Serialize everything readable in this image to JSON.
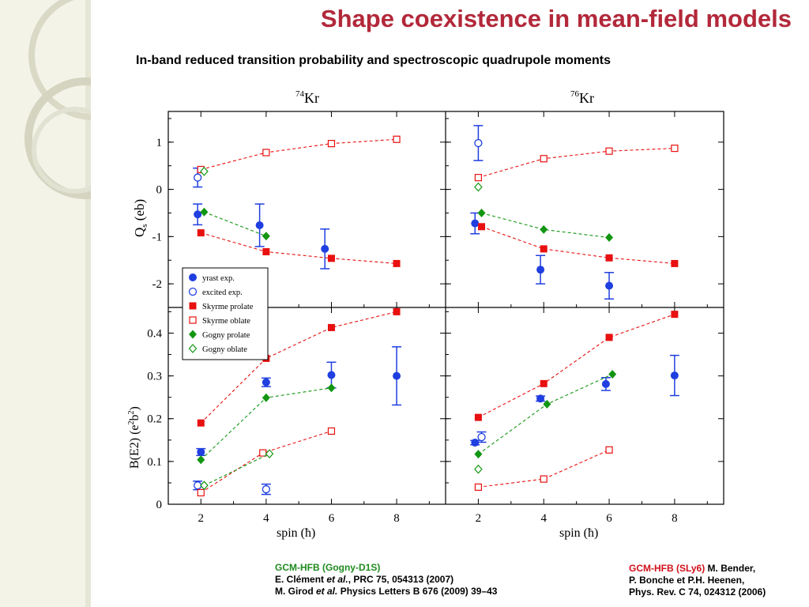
{
  "slide": {
    "title": "Shape coexistence in mean-field models",
    "subtitle": "In-band reduced transition probability and spectroscopic quadrupole moments"
  },
  "references": {
    "left": {
      "method": "GCM-HFB (Gogny-D1S)",
      "line2_a": "E. Clément ",
      "line2_etal": "et al.",
      "line2_b": ", PRC 75, 054313 (2007)",
      "line3_a": "M. Girod ",
      "line3_etal": "et al.",
      "line3_b": " Physics Letters B 676 (2009) 39–43"
    },
    "right": {
      "method": "GCM-HFB (SLy6)",
      "authors1": "  M. Bender,",
      "line2": "P. Bonche et P.H. Heenen,",
      "line3": "Phys. Rev. C 74, 024312 (2006)"
    }
  },
  "colors": {
    "title": "#b2283a",
    "blue": "#1f3fe0",
    "red": "#e81010",
    "green": "#129612"
  },
  "chart_data": {
    "type": "scatter",
    "panels_x": {
      "xlabel": "spin",
      "xunit": "(ħ)",
      "xticks": [
        2,
        4,
        6,
        8
      ],
      "xlim": [
        1.0,
        9.5
      ]
    },
    "top_yaxis": {
      "label_main": "Q",
      "label_sub": "s",
      "label_unit": "(eb)",
      "ylim": [
        -2.5,
        1.65
      ],
      "ticks": [
        1,
        0,
        -1,
        -2
      ],
      "tick_labels": [
        "1",
        "0",
        "-1",
        "-2"
      ]
    },
    "bottom_yaxis": {
      "label_main": "B(E2)",
      "label_unit_a": "(e",
      "label_sup1": "2",
      "label_unit_b": "b",
      "label_sup2": "2",
      "label_unit_c": ")",
      "ylim": [
        0,
        0.46
      ],
      "ticks": [
        0,
        0.1,
        0.2,
        0.3,
        0.4
      ],
      "tick_labels": [
        "0",
        "0.1",
        "0.2",
        "0.3",
        "0.4"
      ]
    },
    "legend": {
      "placement": "top-left of lower-left panel",
      "entries": [
        {
          "label": "yrast exp.",
          "marker": "filled-circle",
          "color": "#1f3fe0"
        },
        {
          "label": "excited exp.",
          "marker": "open-circle",
          "color": "#1f3fe0"
        },
        {
          "label": "Skyrme prolate",
          "marker": "filled-square",
          "color": "#e81010"
        },
        {
          "label": "Skyrme oblate",
          "marker": "open-square",
          "color": "#e81010"
        },
        {
          "label": "Gogny prolate",
          "marker": "filled-diamond",
          "color": "#129612"
        },
        {
          "label": "Gogny oblate",
          "marker": "open-diamond",
          "color": "#129612"
        }
      ]
    },
    "panels": [
      {
        "nucleus_mass": "74",
        "nucleus_sym": "Kr",
        "quantity": "Qs",
        "series": [
          {
            "name": "yrast exp.",
            "marker": "filled-circle",
            "color": "#1f3fe0",
            "line": false,
            "points": [
              {
                "x": 1.9,
                "y": -0.53,
                "err": 0.22
              },
              {
                "x": 3.8,
                "y": -0.76,
                "err": 0.45
              },
              {
                "x": 5.8,
                "y": -1.26,
                "err": 0.42
              }
            ]
          },
          {
            "name": "excited exp.",
            "marker": "open-circle",
            "color": "#1f3fe0",
            "line": false,
            "points": [
              {
                "x": 1.9,
                "y": 0.25,
                "err": 0.2
              }
            ]
          },
          {
            "name": "Skyrme prolate",
            "marker": "filled-square",
            "color": "#e81010",
            "line": true,
            "points": [
              {
                "x": 2,
                "y": -0.92
              },
              {
                "x": 4,
                "y": -1.32
              },
              {
                "x": 6,
                "y": -1.46
              },
              {
                "x": 8,
                "y": -1.57
              }
            ]
          },
          {
            "name": "Skyrme oblate",
            "marker": "open-square",
            "color": "#e81010",
            "line": true,
            "points": [
              {
                "x": 2,
                "y": 0.42
              },
              {
                "x": 4,
                "y": 0.78
              },
              {
                "x": 6,
                "y": 0.97
              },
              {
                "x": 8,
                "y": 1.06
              }
            ]
          },
          {
            "name": "Gogny prolate",
            "marker": "filled-diamond",
            "color": "#129612",
            "line": true,
            "points": [
              {
                "x": 2.1,
                "y": -0.48
              },
              {
                "x": 4,
                "y": -0.99
              }
            ]
          },
          {
            "name": "Gogny oblate",
            "marker": "open-diamond",
            "color": "#129612",
            "line": false,
            "points": [
              {
                "x": 2.1,
                "y": 0.38
              }
            ]
          }
        ]
      },
      {
        "nucleus_mass": "76",
        "nucleus_sym": "Kr",
        "quantity": "Qs",
        "series": [
          {
            "name": "yrast exp.",
            "marker": "filled-circle",
            "color": "#1f3fe0",
            "line": false,
            "points": [
              {
                "x": 1.9,
                "y": -0.72,
                "err": 0.22
              },
              {
                "x": 3.9,
                "y": -1.7,
                "err": 0.3
              },
              {
                "x": 6.0,
                "y": -2.04,
                "err": 0.28
              }
            ]
          },
          {
            "name": "excited exp.",
            "marker": "open-circle",
            "color": "#1f3fe0",
            "line": false,
            "points": [
              {
                "x": 2.0,
                "y": 0.98,
                "err": 0.37
              }
            ]
          },
          {
            "name": "Skyrme prolate",
            "marker": "filled-square",
            "color": "#e81010",
            "line": true,
            "points": [
              {
                "x": 2.1,
                "y": -0.79
              },
              {
                "x": 4,
                "y": -1.26
              },
              {
                "x": 6,
                "y": -1.45
              },
              {
                "x": 8,
                "y": -1.57
              }
            ]
          },
          {
            "name": "Skyrme oblate",
            "marker": "open-square",
            "color": "#e81010",
            "line": true,
            "points": [
              {
                "x": 2,
                "y": 0.25
              },
              {
                "x": 4,
                "y": 0.65
              },
              {
                "x": 6,
                "y": 0.81
              },
              {
                "x": 8,
                "y": 0.87
              }
            ]
          },
          {
            "name": "Gogny prolate",
            "marker": "filled-diamond",
            "color": "#129612",
            "line": true,
            "points": [
              {
                "x": 2.1,
                "y": -0.5
              },
              {
                "x": 4,
                "y": -0.85
              },
              {
                "x": 6,
                "y": -1.02
              }
            ]
          },
          {
            "name": "Gogny oblate",
            "marker": "open-diamond",
            "color": "#129612",
            "line": false,
            "points": [
              {
                "x": 2,
                "y": 0.05
              }
            ]
          }
        ]
      },
      {
        "nucleus_mass": "74",
        "nucleus_sym": "Kr",
        "quantity": "B(E2)",
        "series": [
          {
            "name": "yrast exp.",
            "marker": "filled-circle",
            "color": "#1f3fe0",
            "line": false,
            "points": [
              {
                "x": 2.0,
                "y": 0.122,
                "err": 0.008
              },
              {
                "x": 4.0,
                "y": 0.285,
                "err": 0.01
              },
              {
                "x": 6.0,
                "y": 0.302,
                "err": 0.03
              },
              {
                "x": 8.0,
                "y": 0.3,
                "err": 0.068
              }
            ]
          },
          {
            "name": "excited exp.",
            "marker": "open-circle",
            "color": "#1f3fe0",
            "line": false,
            "points": [
              {
                "x": 1.9,
                "y": 0.044,
                "err": 0.01
              },
              {
                "x": 4.0,
                "y": 0.035,
                "err": 0.012
              }
            ]
          },
          {
            "name": "Skyrme prolate",
            "marker": "filled-square",
            "color": "#e81010",
            "line": true,
            "points": [
              {
                "x": 2,
                "y": 0.19
              },
              {
                "x": 4,
                "y": 0.341
              },
              {
                "x": 6,
                "y": 0.413
              },
              {
                "x": 8,
                "y": 0.45
              }
            ]
          },
          {
            "name": "Skyrme oblate",
            "marker": "open-square",
            "color": "#e81010",
            "line": true,
            "points": [
              {
                "x": 2,
                "y": 0.027
              },
              {
                "x": 3.9,
                "y": 0.12
              },
              {
                "x": 6,
                "y": 0.171
              }
            ]
          },
          {
            "name": "Gogny prolate",
            "marker": "filled-diamond",
            "color": "#129612",
            "line": true,
            "points": [
              {
                "x": 2,
                "y": 0.104
              },
              {
                "x": 4,
                "y": 0.249
              },
              {
                "x": 6,
                "y": 0.272
              }
            ]
          },
          {
            "name": "Gogny oblate",
            "marker": "open-diamond",
            "color": "#129612",
            "line": true,
            "points": [
              {
                "x": 2.1,
                "y": 0.044
              },
              {
                "x": 4.1,
                "y": 0.118
              }
            ]
          }
        ]
      },
      {
        "nucleus_mass": "76",
        "nucleus_sym": "Kr",
        "quantity": "B(E2)",
        "series": [
          {
            "name": "yrast exp.",
            "marker": "filled-circle",
            "color": "#1f3fe0",
            "line": false,
            "points": [
              {
                "x": 1.9,
                "y": 0.144,
                "err": 0.005
              },
              {
                "x": 3.9,
                "y": 0.247,
                "err": 0.006
              },
              {
                "x": 5.9,
                "y": 0.281,
                "err": 0.015
              },
              {
                "x": 8.0,
                "y": 0.301,
                "err": 0.047
              }
            ]
          },
          {
            "name": "excited exp.",
            "marker": "open-circle",
            "color": "#1f3fe0",
            "line": false,
            "points": [
              {
                "x": 2.1,
                "y": 0.157,
                "err": 0.012
              }
            ]
          },
          {
            "name": "Skyrme prolate",
            "marker": "filled-square",
            "color": "#e81010",
            "line": true,
            "points": [
              {
                "x": 2,
                "y": 0.203
              },
              {
                "x": 4,
                "y": 0.282
              },
              {
                "x": 6,
                "y": 0.39
              },
              {
                "x": 8,
                "y": 0.444
              }
            ]
          },
          {
            "name": "Skyrme oblate",
            "marker": "open-square",
            "color": "#e81010",
            "line": true,
            "points": [
              {
                "x": 2,
                "y": 0.04
              },
              {
                "x": 4,
                "y": 0.059
              },
              {
                "x": 6,
                "y": 0.127
              }
            ]
          },
          {
            "name": "Gogny prolate",
            "marker": "filled-diamond",
            "color": "#129612",
            "line": true,
            "points": [
              {
                "x": 2,
                "y": 0.117
              },
              {
                "x": 4.1,
                "y": 0.234
              },
              {
                "x": 6.1,
                "y": 0.304
              }
            ]
          },
          {
            "name": "Gogny oblate",
            "marker": "open-diamond",
            "color": "#129612",
            "line": false,
            "points": [
              {
                "x": 2,
                "y": 0.082
              }
            ]
          }
        ]
      }
    ]
  }
}
